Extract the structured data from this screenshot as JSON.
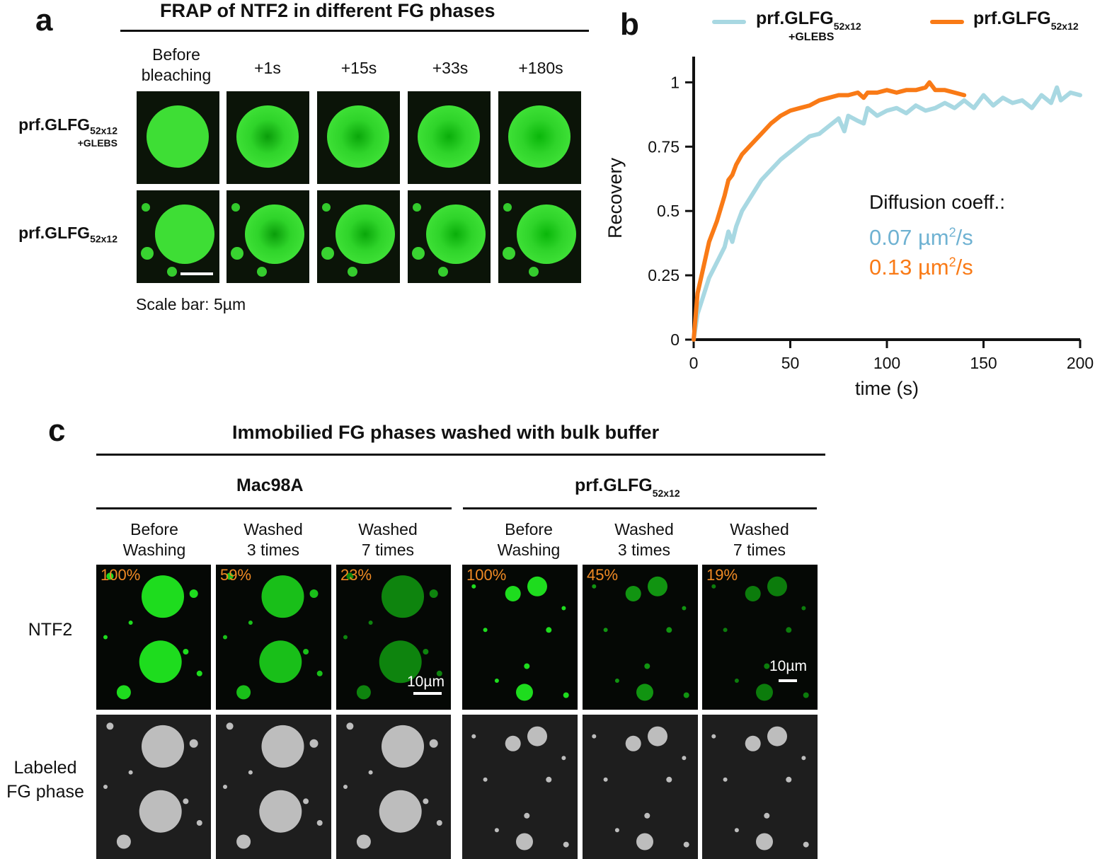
{
  "panel_a": {
    "letter": "a",
    "title": "FRAP of NTF2 in different FG phases",
    "columns": [
      "Before\nbleaching",
      "+1s",
      "+15s",
      "+33s",
      "+180s"
    ],
    "rows": [
      {
        "name": "prf.GLFG",
        "sub": "52x12",
        "sub2": "+GLEBS"
      },
      {
        "name": "prf.GLFG",
        "sub": "52x12"
      }
    ],
    "scale_bar": "Scale bar: 5µm"
  },
  "panel_b": {
    "letter": "b",
    "legend": [
      {
        "name": "prf.GLFG",
        "sub": "52x12",
        "sub2": "+GLEBS",
        "color": "#a8d8e2"
      },
      {
        "name": "prf.GLFG",
        "sub": "52x12",
        "color": "#f97a16"
      }
    ],
    "diffusion_label": "Diffusion coeff.:",
    "coeff_1": "0.07 µm",
    "coeff_1_unit": "/s",
    "coeff_1_color": "#6fb2d2",
    "coeff_2": "0.13 µm",
    "coeff_2_unit": "/s",
    "coeff_2_color": "#f97a16",
    "sup": "2"
  },
  "chart_data": {
    "type": "line",
    "xlabel": "time (s)",
    "ylabel": "Recovery",
    "xlim": [
      0,
      200
    ],
    "ylim": [
      0,
      1.1
    ],
    "xticks": [
      0,
      50,
      100,
      150,
      200
    ],
    "yticks": [
      0,
      0.25,
      0.5,
      0.75,
      1
    ],
    "ytick_labels": [
      "0",
      "0.25",
      "0.5",
      "0.75",
      "1"
    ],
    "series": [
      {
        "name": "prf.GLFG52x12 +GLEBS",
        "color": "#a8d8e2",
        "x": [
          0,
          2,
          5,
          8,
          12,
          16,
          18,
          20,
          22,
          25,
          30,
          35,
          40,
          45,
          50,
          55,
          60,
          65,
          70,
          75,
          78,
          80,
          85,
          88,
          90,
          95,
          100,
          105,
          110,
          115,
          120,
          125,
          130,
          135,
          140,
          145,
          150,
          155,
          160,
          165,
          170,
          175,
          180,
          185,
          188,
          190,
          195,
          200
        ],
        "y": [
          0,
          0.1,
          0.17,
          0.24,
          0.3,
          0.36,
          0.42,
          0.38,
          0.44,
          0.5,
          0.56,
          0.62,
          0.66,
          0.7,
          0.73,
          0.76,
          0.79,
          0.8,
          0.83,
          0.86,
          0.81,
          0.87,
          0.85,
          0.84,
          0.9,
          0.87,
          0.89,
          0.9,
          0.88,
          0.91,
          0.89,
          0.9,
          0.92,
          0.9,
          0.93,
          0.9,
          0.95,
          0.91,
          0.94,
          0.92,
          0.93,
          0.9,
          0.95,
          0.92,
          0.98,
          0.93,
          0.96,
          0.95
        ]
      },
      {
        "name": "prf.GLFG52x12",
        "color": "#f97a16",
        "x": [
          0,
          2,
          5,
          8,
          12,
          16,
          18,
          20,
          22,
          25,
          30,
          35,
          40,
          45,
          50,
          55,
          60,
          65,
          70,
          75,
          80,
          85,
          88,
          90,
          95,
          100,
          105,
          110,
          115,
          120,
          122,
          125,
          130,
          135,
          140
        ],
        "y": [
          0,
          0.18,
          0.28,
          0.38,
          0.46,
          0.56,
          0.62,
          0.64,
          0.68,
          0.72,
          0.76,
          0.8,
          0.84,
          0.87,
          0.89,
          0.9,
          0.91,
          0.93,
          0.94,
          0.95,
          0.95,
          0.96,
          0.94,
          0.96,
          0.96,
          0.97,
          0.96,
          0.97,
          0.97,
          0.98,
          1.0,
          0.97,
          0.97,
          0.96,
          0.95
        ]
      }
    ]
  },
  "panel_c": {
    "letter": "c",
    "title": "Immobilied FG phases washed with bulk buffer",
    "group_1": "Mac98A",
    "group_2": {
      "name": "prf.GLFG",
      "sub": "52x12"
    },
    "columns": [
      "Before\nWashing",
      "Washed\n3 times",
      "Washed\n7 times",
      "Before\nWashing",
      "Washed\n3 times",
      "Washed\n7 times"
    ],
    "row_1": "NTF2",
    "row_2": "Labeled\nFG phase",
    "percents": [
      "100%",
      "59%",
      "23%",
      "100%",
      "45%",
      "19%"
    ],
    "scale_1": "10µm",
    "scale_2": "10µm"
  }
}
